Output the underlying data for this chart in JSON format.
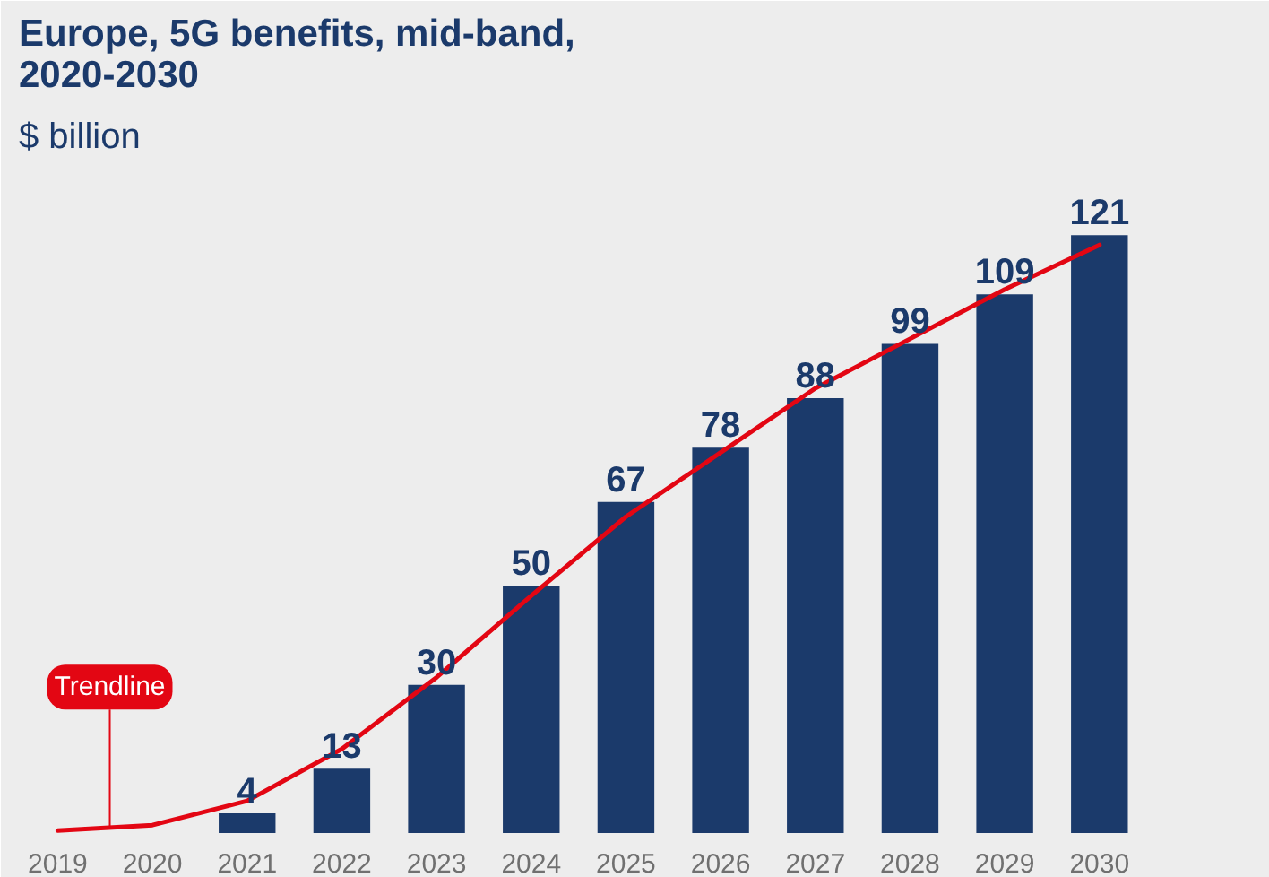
{
  "chart_data": {
    "type": "bar",
    "title": "Europe, 5G benefits, mid-band,\n2020-2030",
    "subtitle": "$ billion",
    "categories": [
      "2019",
      "2020",
      "2021",
      "2022",
      "2023",
      "2024",
      "2025",
      "2026",
      "2027",
      "2028",
      "2029",
      "2030"
    ],
    "series": [
      {
        "color": "#1b3a6b",
        "values": [
          null,
          null,
          4,
          13,
          30,
          50,
          67,
          78,
          88,
          99,
          109,
          121
        ],
        "value_labels": [
          null,
          null,
          "4",
          "13",
          "30",
          "50",
          "67",
          "78",
          "88",
          "99",
          "109",
          "121"
        ]
      },
      {
        "type": "line",
        "name": "Trendline",
        "color": "#e30613",
        "values": [
          0.5,
          1.6,
          6.5,
          17,
          31.5,
          48,
          64,
          77,
          90,
          100,
          110,
          119
        ]
      }
    ],
    "ylim": [
      0,
      135
    ],
    "tick_labels": "x",
    "grid": false
  }
}
